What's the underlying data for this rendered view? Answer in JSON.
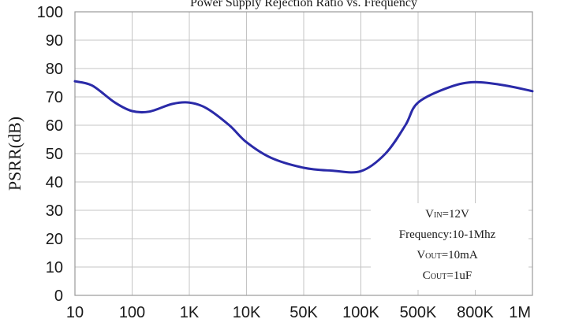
{
  "chart_data": {
    "type": "line",
    "title": "Power Supply Rejection Ratio vs. Frequency",
    "ylabel": "PSRR(dB)",
    "xlabel": "",
    "ylim": [
      0,
      100
    ],
    "yticks": [
      "0",
      "10",
      "20",
      "30",
      "40",
      "50",
      "60",
      "70",
      "80",
      "90",
      "100"
    ],
    "xtick_labels": [
      "10",
      "100",
      "1K",
      "10K",
      "50K",
      "100K",
      "500K",
      "800K",
      "1M"
    ],
    "grid": true,
    "line_color": "#2a2aa8",
    "series": [
      {
        "x": [
          "10",
          "20",
          "50",
          "100",
          "200",
          "500",
          "1K",
          "2K",
          "5K",
          "10K",
          "20K",
          "50K",
          "70K",
          "100K",
          "200K",
          "350K",
          "500K",
          "650K",
          "800K",
          "900K",
          "1M"
        ],
        "values": [
          75.5,
          74,
          68,
          65,
          64.8,
          67.5,
          68,
          66,
          60,
          54,
          48.5,
          45,
          44,
          43.8,
          50,
          60,
          68,
          73.5,
          75.2,
          74,
          72
        ]
      }
    ],
    "annotation": {
      "vin": {
        "main": "V",
        "sub": "IN",
        "rest": "=12V"
      },
      "frequency": "Frequency:10-1Mhz",
      "vout": {
        "main": "V",
        "sub": "OUT",
        "rest": "=10mA"
      },
      "cout": {
        "main": "C",
        "sub": "OUT",
        "rest": "=1uF"
      }
    }
  }
}
